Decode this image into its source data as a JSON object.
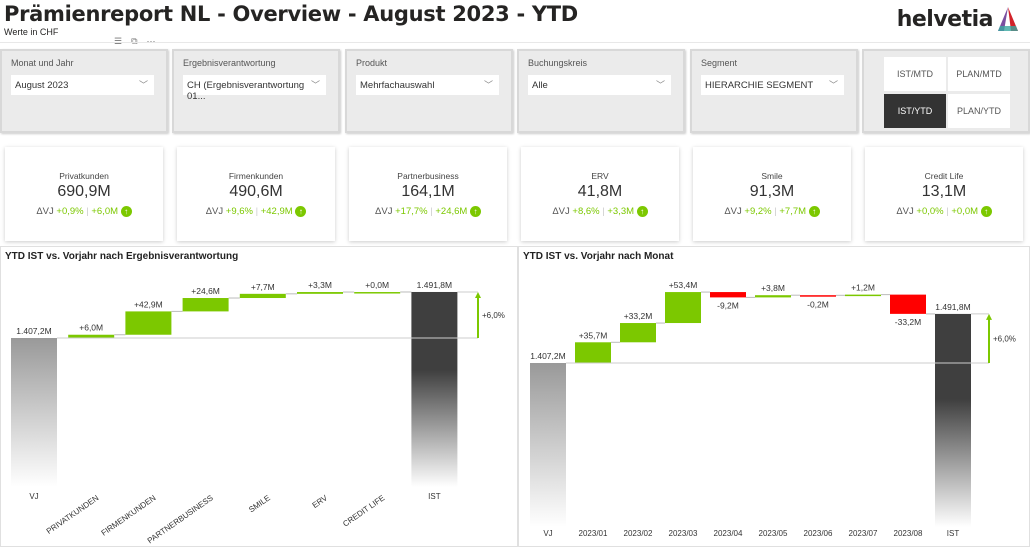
{
  "header": {
    "title": "Prämienreport NL - Overview - August 2023 - YTD",
    "subtitle": "Werte in CHF",
    "logo_text": "helvetia"
  },
  "slicers": [
    {
      "label": "Monat und Jahr",
      "value": "August 2023"
    },
    {
      "label": "Ergebnisverantwortung",
      "value": "CH (Ergebnisverantwortung 01..."
    },
    {
      "label": "Produkt",
      "value": "Mehrfachauswahl"
    },
    {
      "label": "Buchungskreis",
      "value": "Alle"
    },
    {
      "label": "Segment",
      "value": "HIERARCHIE SEGMENT"
    }
  ],
  "view_buttons": [
    {
      "label": "IST/MTD",
      "selected": false
    },
    {
      "label": "PLAN/MTD",
      "selected": false
    },
    {
      "label": "IST/YTD",
      "selected": true
    },
    {
      "label": "PLAN/YTD",
      "selected": false
    }
  ],
  "kpis": [
    {
      "name": "Privatkunden",
      "value": "690,9M",
      "delta_label": "ΔVJ",
      "pct": "+0,9%",
      "abs": "+6,0M"
    },
    {
      "name": "Firmenkunden",
      "value": "490,6M",
      "delta_label": "ΔVJ",
      "pct": "+9,6%",
      "abs": "+42,9M"
    },
    {
      "name": "Partnerbusiness",
      "value": "164,1M",
      "delta_label": "ΔVJ",
      "pct": "+17,7%",
      "abs": "+24,6M"
    },
    {
      "name": "ERV",
      "value": "41,8M",
      "delta_label": "ΔVJ",
      "pct": "+8,6%",
      "abs": "+3,3M"
    },
    {
      "name": "Smile",
      "value": "91,3M",
      "delta_label": "ΔVJ",
      "pct": "+9,2%",
      "abs": "+7,7M"
    },
    {
      "name": "Credit Life",
      "value": "13,1M",
      "delta_label": "ΔVJ",
      "pct": "+0,0%",
      "abs": "+0,0M"
    }
  ],
  "colors": {
    "positive": "#7cc800",
    "negative": "#ff0000",
    "total": "#3f3f3f",
    "base": "#999999"
  },
  "chart_data": [
    {
      "type": "waterfall",
      "title": "YTD IST vs. Vorjahr nach Ergebnisverantwortung",
      "start": {
        "label": "VJ",
        "value": 1407.2,
        "text": "1.407,2M"
      },
      "categories": [
        "PRIVATKUNDEN",
        "FIRMENKUNDEN",
        "PARTNERBUSINESS",
        "SMILE",
        "ERV",
        "CREDIT LIFE"
      ],
      "deltas": [
        6.0,
        42.9,
        24.6,
        7.7,
        3.3,
        0.0
      ],
      "delta_labels": [
        "+6,0M",
        "+42,9M",
        "+24,6M",
        "+7,7M",
        "+3,3M",
        "+0,0M"
      ],
      "end": {
        "label": "IST",
        "value": 1491.8,
        "text": "1.491,8M"
      },
      "change_label": "+6,0%"
    },
    {
      "type": "waterfall",
      "title": "YTD IST vs. Vorjahr nach Monat",
      "start": {
        "label": "VJ",
        "value": 1407.2,
        "text": "1.407,2M"
      },
      "categories": [
        "2023/01",
        "2023/02",
        "2023/03",
        "2023/04",
        "2023/05",
        "2023/06",
        "2023/07",
        "2023/08"
      ],
      "deltas": [
        35.7,
        33.2,
        53.4,
        -9.2,
        3.8,
        -0.2,
        1.2,
        -33.2
      ],
      "delta_labels": [
        "+35,7M",
        "+33,2M",
        "+53,4M",
        "-9,2M",
        "+3,8M",
        "-0,2M",
        "+1,2M",
        "-33,2M"
      ],
      "end": {
        "label": "IST",
        "value": 1491.8,
        "text": "1.491,8M"
      },
      "change_label": "+6,0%"
    }
  ]
}
